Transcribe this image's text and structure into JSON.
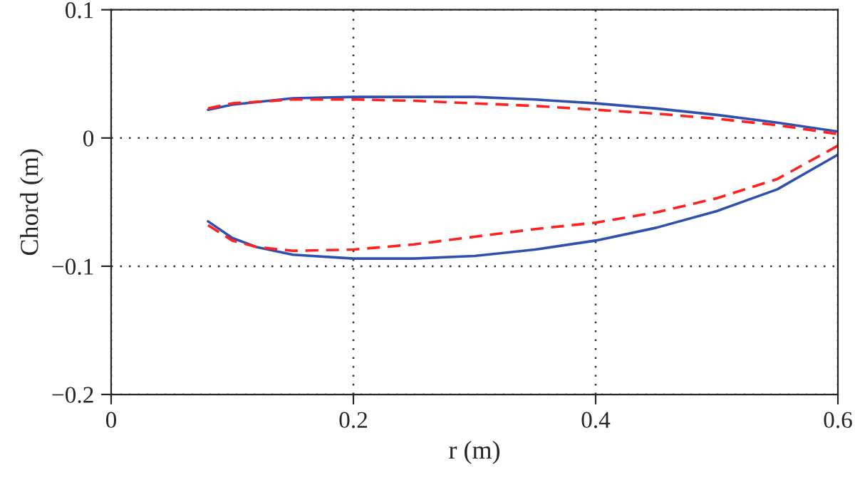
{
  "chart_data": {
    "type": "line",
    "xlabel": "r (m)",
    "ylabel": "Chord (m)",
    "xlim": [
      0,
      0.6
    ],
    "xticks": [
      0,
      0.2,
      0.4,
      0.6
    ],
    "ylim": [
      -0.2,
      0.1
    ],
    "yticks": [
      {
        "value": -0.2,
        "label": "−0.2"
      },
      {
        "value": -0.1,
        "label": "−0.1"
      },
      0,
      0.1
    ],
    "grid": true,
    "series": [
      {
        "color": "#3050b0",
        "line_style": "solid",
        "x": [
          0.08,
          0.1,
          0.15,
          0.2,
          0.25,
          0.3,
          0.35,
          0.4,
          0.45,
          0.5,
          0.55,
          0.6
        ],
        "values": [
          0.022,
          0.026,
          0.031,
          0.032,
          0.032,
          0.032,
          0.03,
          0.027,
          0.023,
          0.018,
          0.012,
          0.005
        ]
      },
      {
        "color": "#ff2020",
        "line_style": "dashed",
        "x": [
          0.08,
          0.1,
          0.15,
          0.2,
          0.25,
          0.3,
          0.35,
          0.4,
          0.45,
          0.5,
          0.55,
          0.6
        ],
        "values": [
          0.023,
          0.027,
          0.03,
          0.03,
          0.029,
          0.027,
          0.025,
          0.022,
          0.019,
          0.015,
          0.01,
          0.003
        ]
      },
      {
        "color": "#3050b0",
        "line_style": "solid",
        "x": [
          0.08,
          0.1,
          0.12,
          0.15,
          0.2,
          0.25,
          0.3,
          0.35,
          0.4,
          0.45,
          0.5,
          0.55,
          0.6
        ],
        "values": [
          -0.065,
          -0.078,
          -0.085,
          -0.091,
          -0.094,
          -0.094,
          -0.092,
          -0.087,
          -0.08,
          -0.07,
          -0.057,
          -0.04,
          -0.013
        ]
      },
      {
        "color": "#ff2020",
        "line_style": "dashed",
        "x": [
          0.08,
          0.1,
          0.12,
          0.15,
          0.2,
          0.25,
          0.3,
          0.35,
          0.4,
          0.45,
          0.5,
          0.55,
          0.6
        ],
        "values": [
          -0.068,
          -0.08,
          -0.085,
          -0.088,
          -0.087,
          -0.083,
          -0.077,
          -0.071,
          -0.066,
          -0.058,
          -0.047,
          -0.032,
          -0.006
        ]
      }
    ]
  }
}
